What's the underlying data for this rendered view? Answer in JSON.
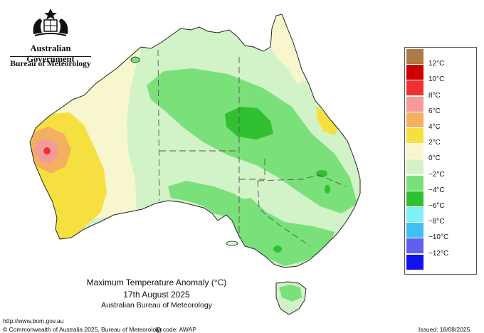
{
  "header": {
    "government": "Australian Government",
    "bureau": "Bureau of Meteorology"
  },
  "title": {
    "line1": "Maximum Temperature Anomaly (°C)",
    "line2": "17th August 2025",
    "line3": "Australian Bureau of Meteorology"
  },
  "legend": {
    "colors": [
      "#b07a48",
      "#d00000",
      "#f03030",
      "#f59a9a",
      "#f2b060",
      "#f5e040",
      "#f8f6cc",
      "#d2f2c8",
      "#7ae07a",
      "#30c030",
      "#80f0f8",
      "#40c0f0",
      "#6060f0",
      "#1010f0"
    ],
    "labels": [
      "12°C",
      "10°C",
      "8°C",
      "6°C",
      "4°C",
      "2°C",
      "0°C",
      "−2°C",
      "−4°C",
      "−6°C",
      "−8°C",
      "−10°C",
      "−12°C"
    ]
  },
  "map_colors": {
    "neutral": "#f8f6cc",
    "warm_2": "#f5e040",
    "warm_4": "#f2b060",
    "warm_6": "#f59a9a",
    "warm_8": "#f03030",
    "cool_0": "#d2f2c8",
    "cool_2": "#7ae07a",
    "cool_4": "#30c030"
  },
  "footer": {
    "url": "http://www.bom.gov.au",
    "copyright": "© Commonwealth of Australia 2025, Bureau of Meteorology",
    "id_code": "ID code: AWAP",
    "issued": "Issued: 18/08/2025"
  }
}
